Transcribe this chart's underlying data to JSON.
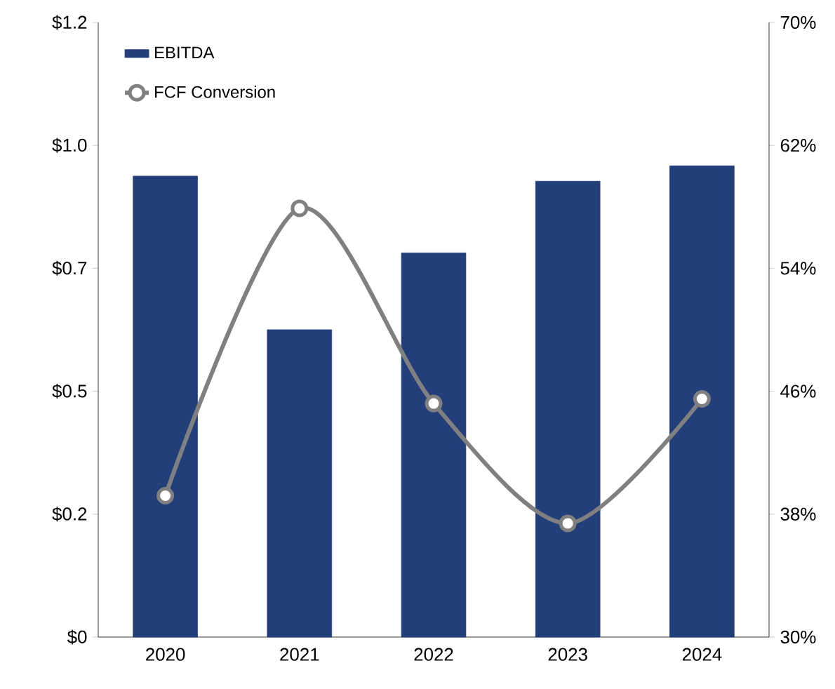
{
  "chart_data": {
    "type": "bar",
    "categories": [
      "2020",
      "2021",
      "2022",
      "2023",
      "2024"
    ],
    "series": [
      {
        "name": "EBITDA",
        "color": "#233f7a",
        "values": [
          0.9,
          0.6,
          0.75,
          0.89,
          0.92
        ]
      },
      {
        "name": "FCF Conversion",
        "type": "line",
        "axis": "y2",
        "color": "#808080",
        "values": [
          39.2,
          57.9,
          45.2,
          37.4,
          45.5
        ]
      }
    ],
    "ylim": [
      0,
      1.2
    ],
    "yticks": [
      {
        "value": 0,
        "label": "$0"
      },
      {
        "value": 0.24,
        "label": "$0.2"
      },
      {
        "value": 0.48,
        "label": "$0.5"
      },
      {
        "value": 0.72,
        "label": "$0.7"
      },
      {
        "value": 0.96,
        "label": "$1.0"
      },
      {
        "value": 1.2,
        "label": "$1.2"
      }
    ],
    "y2lim": [
      30,
      70
    ],
    "y2ticks": [
      {
        "value": 30,
        "label": "30%"
      },
      {
        "value": 38,
        "label": "38%"
      },
      {
        "value": 46,
        "label": "46%"
      },
      {
        "value": 54,
        "label": "54%"
      },
      {
        "value": 62,
        "label": "62%"
      },
      {
        "value": 70,
        "label": "70%"
      }
    ],
    "legend": "top left",
    "marker": "circle",
    "line_style": "solid"
  }
}
